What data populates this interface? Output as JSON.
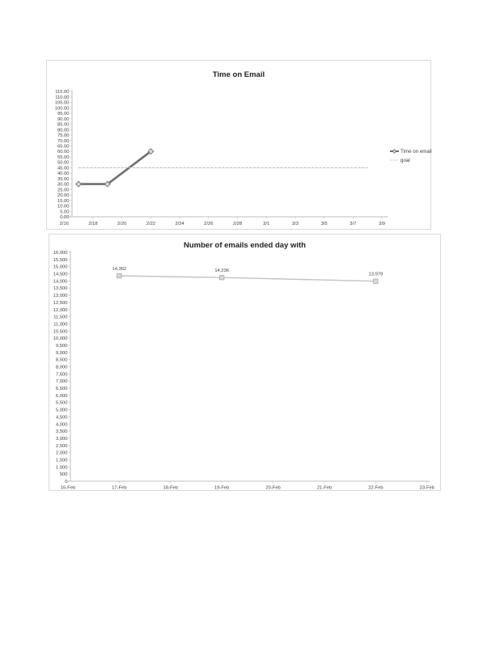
{
  "page": {
    "background": "#ffffff"
  },
  "colors": {
    "chart_border": "#d9d9d9",
    "axis": "#bfbfbf",
    "tick_text": "#404040",
    "title_text": "#1f1f1f",
    "series_dark": "#6e6e6e",
    "series_light": "#c3c3c3",
    "goal_line": "#bfbfbf",
    "marker_fill": "#d9d9d9"
  },
  "chart_data": [
    {
      "type": "line",
      "title": "Time on Email",
      "legend_position": "right",
      "grid": false,
      "x_axis": {
        "tick_labels": [
          "2/16",
          "2/18",
          "2/20",
          "2/22",
          "2/24",
          "2/26",
          "2/28",
          "3/1",
          "3/3",
          "3/5",
          "3/7",
          "3/9"
        ],
        "tick_days": [
          0,
          2,
          4,
          6,
          8,
          10,
          12,
          14,
          16,
          18,
          20,
          22
        ]
      },
      "y_axis": {
        "min": 0,
        "max": 115,
        "step": 5,
        "decimals": 2,
        "thousands": false
      },
      "series": [
        {
          "name": "Time on email",
          "color": "#6e6e6e",
          "width": 2.6,
          "dashed": false,
          "marker": "diamond",
          "marker_fill": "#d9d9d9",
          "marker_stroke": "#6e6e6e",
          "data_labels": false,
          "points": [
            {
              "x": "2/17",
              "day": 1,
              "value": 30
            },
            {
              "x": "2/19",
              "day": 3,
              "value": 30
            },
            {
              "x": "2/22",
              "day": 6,
              "value": 60
            }
          ]
        },
        {
          "name": "goal",
          "color": "#bfbfbf",
          "width": 1.1,
          "dashed": true,
          "marker": "none",
          "data_labels": false,
          "points": [
            {
              "x": "2/17",
              "day": 1,
              "value": 45
            },
            {
              "x": "3/8",
              "day": 21,
              "value": 45
            }
          ]
        }
      ],
      "legend": {
        "entries": [
          "Time on email",
          "goal"
        ]
      }
    },
    {
      "type": "line",
      "title": "Number of emails ended day with",
      "legend_position": "none",
      "grid": false,
      "x_axis": {
        "tick_labels": [
          "16-Feb",
          "17-Feb",
          "18-Feb",
          "19-Feb",
          "20-Feb",
          "21-Feb",
          "22-Feb",
          "23-Feb"
        ],
        "tick_days": [
          0,
          1,
          2,
          3,
          4,
          5,
          6,
          7
        ]
      },
      "y_axis": {
        "min": 0,
        "max": 16000,
        "step": 500,
        "decimals": 0,
        "thousands": true
      },
      "series": [
        {
          "color": "#c3c3c3",
          "width": 1.4,
          "dashed": false,
          "marker": "square",
          "marker_fill": "#d9d9d9",
          "marker_stroke": "#a6a6a6",
          "data_labels": true,
          "points": [
            {
              "x": "17-Feb",
              "day": 1,
              "value": 14362,
              "label": "14,362"
            },
            {
              "x": "19-Feb",
              "day": 3,
              "value": 14236,
              "label": "14,236"
            },
            {
              "x": "22-Feb",
              "day": 6,
              "value": 13979,
              "label": "13,979"
            }
          ]
        }
      ],
      "legend": null
    }
  ]
}
